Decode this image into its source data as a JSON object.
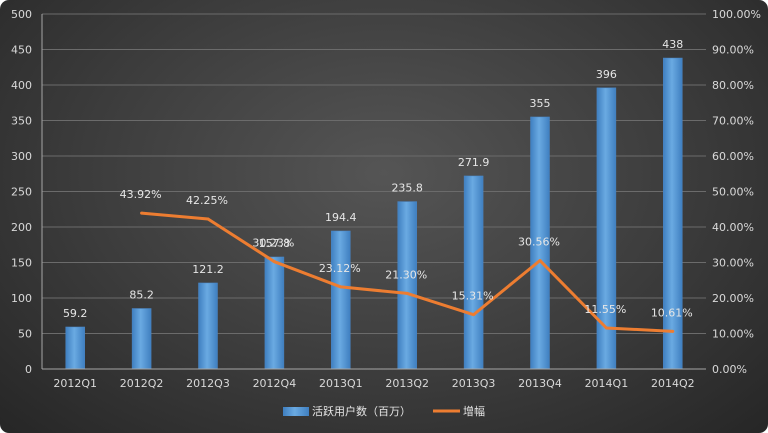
{
  "chart_data": {
    "type": "bar",
    "categories": [
      "2012Q1",
      "2012Q2",
      "2012Q3",
      "2012Q4",
      "2013Q1",
      "2013Q2",
      "2013Q3",
      "2013Q4",
      "2014Q1",
      "2014Q2"
    ],
    "series": [
      {
        "name": "活跃用户数（百万）",
        "type": "bar",
        "axis": "left",
        "values": [
          59.2,
          85.2,
          121.2,
          157.8,
          194.4,
          235.8,
          271.9,
          355,
          396,
          438
        ],
        "labels": [
          "59.2",
          "85.2",
          "121.2",
          "157.8",
          "194.4",
          "235.8",
          "271.9",
          "355",
          "396",
          "438"
        ]
      },
      {
        "name": "增幅",
        "type": "line",
        "axis": "right",
        "values": [
          null,
          43.92,
          42.25,
          30.23,
          23.12,
          21.3,
          15.31,
          30.56,
          11.55,
          10.61
        ],
        "labels": [
          null,
          "43.92%",
          "42.25%",
          "30.23%",
          "23.12%",
          "21.30%",
          "15.31%",
          "30.56%",
          "11.55%",
          "10.61%"
        ]
      }
    ],
    "ylim": [
      0,
      500
    ],
    "y2lim": [
      0,
      100
    ],
    "yticks": [
      "0",
      "50",
      "100",
      "150",
      "200",
      "250",
      "300",
      "350",
      "400",
      "450",
      "500"
    ],
    "y2ticks": [
      "0.00%",
      "10.00%",
      "20.00%",
      "30.00%",
      "40.00%",
      "50.00%",
      "60.00%",
      "70.00%",
      "80.00%",
      "90.00%",
      "100.00%"
    ],
    "grid": true,
    "legend": "bottom-center",
    "colors": {
      "bar": "#5b9bd5",
      "line": "#ed7d31"
    }
  }
}
